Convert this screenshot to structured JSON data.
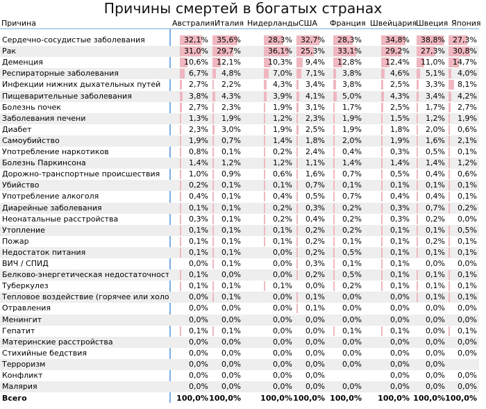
{
  "title": "Причины смертей в богатых странах",
  "colors": {
    "bar": "#efb7bf",
    "stripe": "#eeeeee",
    "rule": "#78aee6"
  },
  "chart_data": {
    "type": "table",
    "header": "Причина",
    "columns": [
      "Австралия",
      "Италия",
      "Нидерланды",
      "США",
      "Франция",
      "Швейцария",
      "Швеция",
      "Япония"
    ],
    "rows": [
      {
        "label": "Сердечно-сосудистые заболевания",
        "values": [
          "32,1%",
          "35,6%",
          "28,3%",
          "32,7%",
          "28,3%",
          "34,8%",
          "38,8%",
          "27,3%"
        ]
      },
      {
        "label": "Рак",
        "values": [
          "31,0%",
          "29,7%",
          "36,1%",
          "25,3%",
          "33,1%",
          "29,2%",
          "27,3%",
          "30,8%"
        ]
      },
      {
        "label": "Деменция",
        "values": [
          "10,6%",
          "12,1%",
          "10,3%",
          "9,4%",
          "12,8%",
          "12,4%",
          "11,0%",
          "14,7%"
        ]
      },
      {
        "label": "Респираторные заболевания",
        "values": [
          "6,7%",
          "4,8%",
          "7,0%",
          "7,1%",
          "3,8%",
          "4,6%",
          "5,1%",
          "4,0%"
        ]
      },
      {
        "label": "Инфекции нижних дыхательных путей",
        "values": [
          "2,7%",
          "2,2%",
          "4,3%",
          "3,4%",
          "3,8%",
          "2,5%",
          "3,3%",
          "8,1%"
        ]
      },
      {
        "label": "Пищеварительные заболевания",
        "values": [
          "3,8%",
          "4,3%",
          "3,9%",
          "4,1%",
          "5,0%",
          "4,3%",
          "3,4%",
          "4,2%"
        ]
      },
      {
        "label": "Болезнь почек",
        "values": [
          "2,7%",
          "2,3%",
          "1,9%",
          "3,1%",
          "1,7%",
          "2,5%",
          "1,7%",
          "2,7%"
        ]
      },
      {
        "label": "Заболевания печени",
        "values": [
          "1,3%",
          "1,9%",
          "1,2%",
          "2,3%",
          "1,9%",
          "1,5%",
          "1,2%",
          "1,9%"
        ]
      },
      {
        "label": "Диабет",
        "values": [
          "2,3%",
          "3,0%",
          "1,9%",
          "2,5%",
          "1,9%",
          "1,8%",
          "2,0%",
          "0,6%"
        ]
      },
      {
        "label": "Самоубийство",
        "values": [
          "1,9%",
          "0,7%",
          "1,4%",
          "1,8%",
          "2,0%",
          "1,9%",
          "1,6%",
          "2,1%"
        ]
      },
      {
        "label": "Употребление наркотиков",
        "values": [
          "0,8%",
          "0,1%",
          "0,2%",
          "2,4%",
          "0,4%",
          "0,3%",
          "0,5%",
          "0,1%"
        ]
      },
      {
        "label": "Болезнь Паркинсона",
        "values": [
          "1,4%",
          "1,2%",
          "1,2%",
          "1,1%",
          "1,4%",
          "1,4%",
          "1,4%",
          "1,2%"
        ]
      },
      {
        "label": "Дорожно-транспортные происшествия",
        "values": [
          "1,0%",
          "0,9%",
          "0,6%",
          "1,6%",
          "0,7%",
          "0,5%",
          "0,4%",
          "0,6%"
        ]
      },
      {
        "label": "Убийство",
        "values": [
          "0,2%",
          "0,1%",
          "0,1%",
          "0,7%",
          "0,1%",
          "0,1%",
          "0,1%",
          "0,1%"
        ]
      },
      {
        "label": "Употребление алкоголя",
        "values": [
          "0,4%",
          "0,1%",
          "0,4%",
          "0,5%",
          "0,7%",
          "0,4%",
          "0,4%",
          "0,1%"
        ]
      },
      {
        "label": "Диарейные заболевания",
        "values": [
          "0,1%",
          "0,1%",
          "0,2%",
          "0,3%",
          "0,2%",
          "0,3%",
          "0,7%",
          "0,2%"
        ]
      },
      {
        "label": "Неонатальные расстройства",
        "values": [
          "0,3%",
          "0,1%",
          "0,2%",
          "0,4%",
          "0,2%",
          "0,3%",
          "0,2%",
          "0,0%"
        ]
      },
      {
        "label": "Утопление",
        "values": [
          "0,1%",
          "0,1%",
          "0,1%",
          "0,2%",
          "0,2%",
          "0,1%",
          "0,1%",
          "0,5%"
        ]
      },
      {
        "label": "Пожар",
        "values": [
          "0,1%",
          "0,1%",
          "0,1%",
          "0,2%",
          "0,1%",
          "0,1%",
          "0,2%",
          "0,1%"
        ]
      },
      {
        "label": "Недостаток питания",
        "values": [
          "0,1%",
          "0,1%",
          "0,0%",
          "0,2%",
          "0,5%",
          "0,1%",
          "0,1%",
          "0,1%"
        ]
      },
      {
        "label": "ВИЧ / СПИД",
        "values": [
          "0,0%",
          "0,1%",
          "0,0%",
          "0,3%",
          "0,1%",
          "0,1%",
          "0,0%",
          "0,0%"
        ]
      },
      {
        "label": "Белково-энергетическая недостаточность",
        "values": [
          "0,1%",
          "0,0%",
          "0,0%",
          "0,2%",
          "0,5%",
          "0,1%",
          "0,1%",
          "0,1%"
        ]
      },
      {
        "label": "Туберкулез",
        "values": [
          "0,1%",
          "0,1%",
          "0,1%",
          "0,0%",
          "0,2%",
          "0,1%",
          "0,1%",
          "0,1%"
        ]
      },
      {
        "label": "Тепловое воздействие (горячее или холодное)",
        "values": [
          "0,0%",
          "0,1%",
          "0,0%",
          "0,1%",
          "0,0%",
          "0,0%",
          "0,1%",
          "0,1%"
        ]
      },
      {
        "label": "Отравления",
        "values": [
          "0,0%",
          "0,0%",
          "0,0%",
          "0,1%",
          "0,0%",
          "0,0%",
          "0,0%",
          "0,0%"
        ]
      },
      {
        "label": "Менингит",
        "values": [
          "0,0%",
          "0,0%",
          "0,0%",
          "0,0%",
          "0,0%",
          "0,0%",
          "0,0%",
          "0,0%"
        ]
      },
      {
        "label": "Гепатит",
        "values": [
          "0,1%",
          "0,1%",
          "0,0%",
          "0,0%",
          "0,1%",
          "0,1%",
          "0,0%",
          "0,1%"
        ]
      },
      {
        "label": "Материнские расстройства",
        "values": [
          "0,0%",
          "0,0%",
          "0,0%",
          "0,0%",
          "0,0%",
          "0,0%",
          "0,0%",
          "0,0%"
        ]
      },
      {
        "label": "Стихийные бедствия",
        "values": [
          "0,0%",
          "0,0%",
          "0,0%",
          "0,0%",
          "0,0%",
          "0,0%",
          "0,0%",
          "0,0%"
        ]
      },
      {
        "label": "Терроризм",
        "values": [
          "0,0%",
          "0,0%",
          "0,0%",
          "0,0%",
          "0,0%",
          "0,0%",
          "0,0%",
          ""
        ]
      },
      {
        "label": "Конфликт",
        "values": [
          "0,0%",
          "0,0%",
          "0,0%",
          "0,0%",
          "",
          "0,0%",
          "0,0%",
          "0,0%"
        ]
      },
      {
        "label": "Малярия",
        "values": [
          "0,0%",
          "0,0%",
          "0,0%",
          "0,0%",
          "0,0%",
          "0,0%",
          "0,0%",
          "0,0%"
        ]
      }
    ],
    "total": {
      "label": "Всего",
      "values": [
        "100,0%",
        "100,0%",
        "100,0%",
        "100,0%",
        "100,0%",
        "100,0%",
        "100,0%",
        "100,0%"
      ]
    }
  }
}
